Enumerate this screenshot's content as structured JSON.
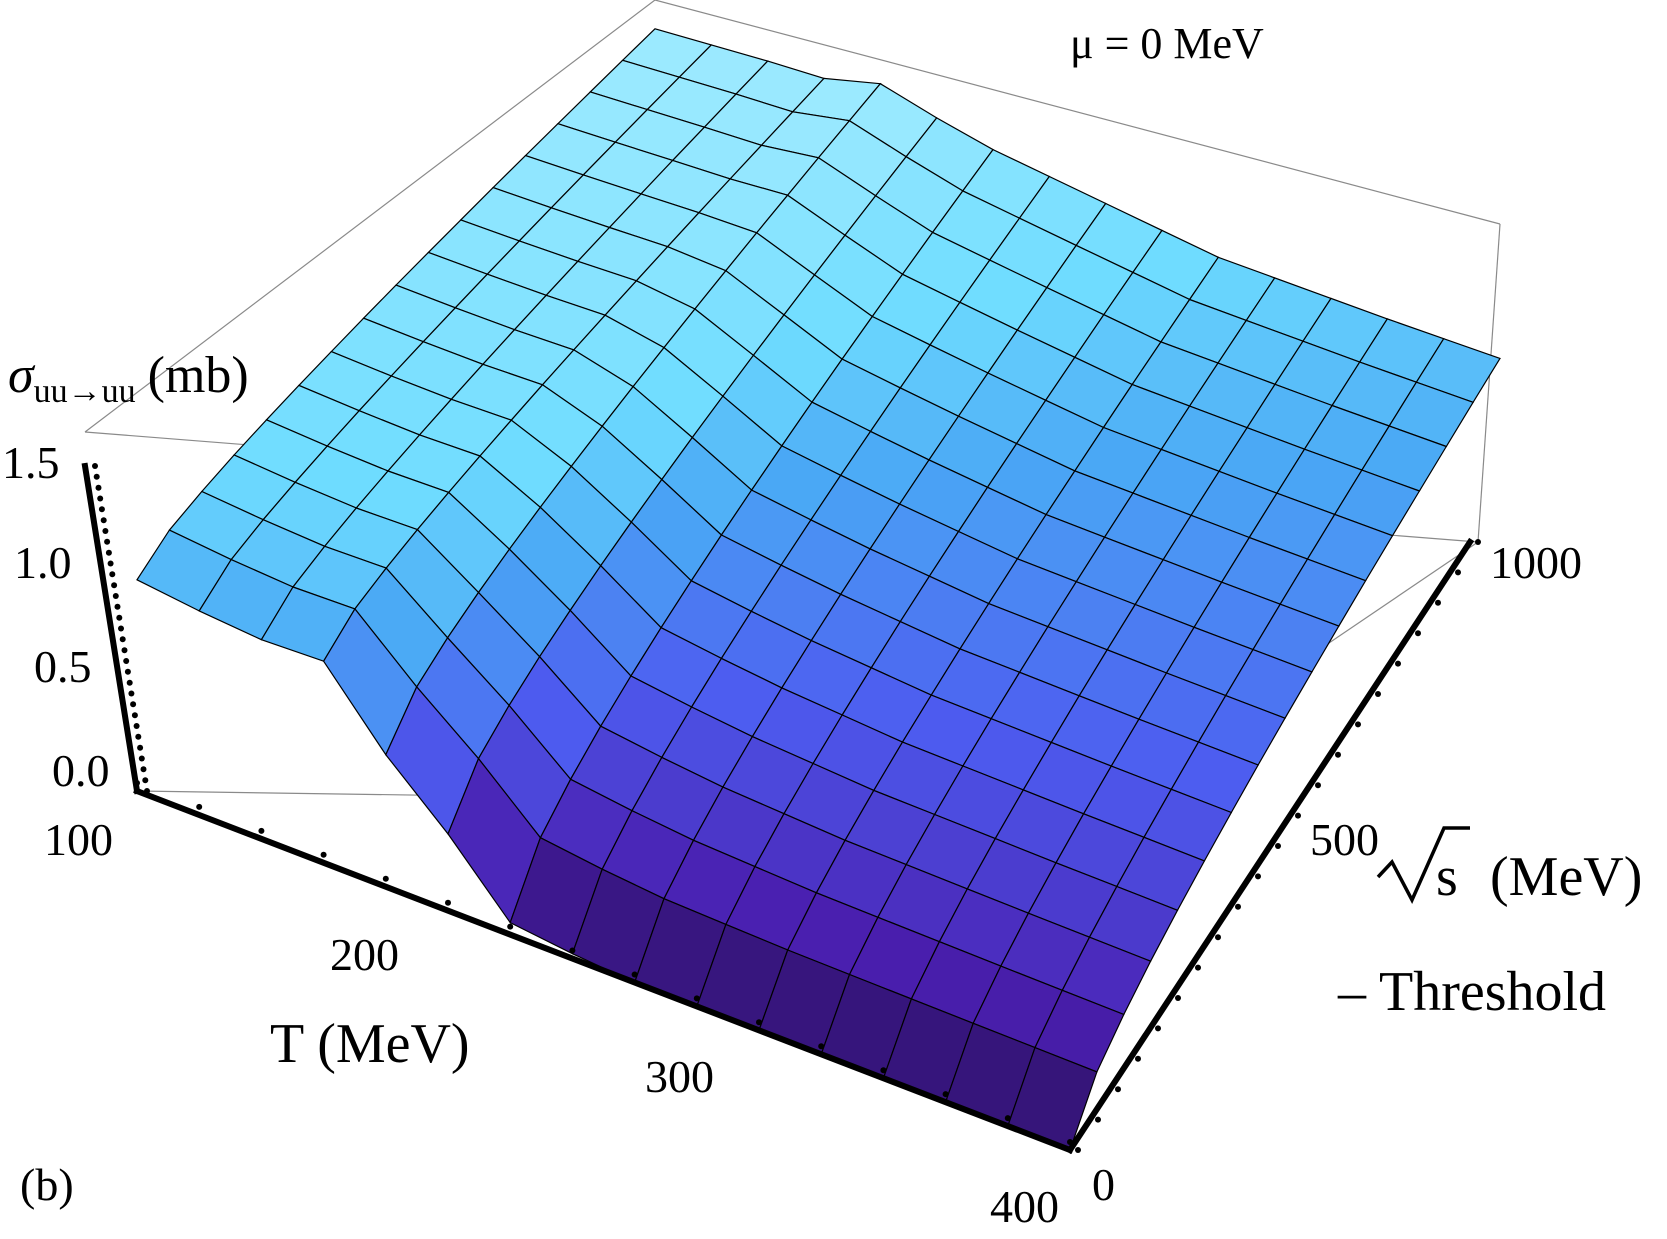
{
  "chart_data": {
    "type": "surface",
    "panel_label": "(b)",
    "annotation": "μ = 0 MeV",
    "z_axis": {
      "label_main": "σ",
      "label_sub": "uu→uu",
      "label_unit": "(mb)",
      "ticks": [
        "1.5",
        "1.0",
        "0.5",
        "0.0"
      ],
      "range": [
        0,
        1.5
      ]
    },
    "x_axis": {
      "label": "T (MeV)",
      "ticks": [
        "100",
        "200",
        "300",
        "400"
      ],
      "range": [
        100,
        400
      ]
    },
    "y_axis": {
      "label_sqrt": "√s",
      "label_unit": "(MeV)",
      "label_line2": "– Threshold",
      "ticks": [
        "0",
        "500",
        "1000"
      ],
      "range": [
        0,
        1000
      ]
    },
    "surface": {
      "T": [
        100,
        120,
        140,
        160,
        180,
        200,
        220,
        240,
        260,
        280,
        300,
        320,
        340,
        360,
        380,
        400
      ],
      "sqrt_s_minus_threshold": [
        0,
        62.5,
        125,
        187.5,
        250,
        312.5,
        375,
        437.5,
        500,
        562.5,
        625,
        687.5,
        750,
        812.5,
        875,
        937.5,
        1000
      ],
      "sigma_front_edge_T_vs_value": [
        [
          100,
          0.88
        ],
        [
          120,
          0.85
        ],
        [
          140,
          0.83
        ],
        [
          160,
          0.84
        ],
        [
          180,
          0.55
        ],
        [
          200,
          0.32
        ],
        [
          220,
          0.05
        ],
        [
          240,
          0.02
        ],
        [
          260,
          0.0
        ],
        [
          300,
          0.0
        ],
        [
          400,
          0.0
        ]
      ],
      "sigma_back_edge_T_vs_value": [
        [
          100,
          1.38
        ],
        [
          140,
          1.37
        ],
        [
          160,
          1.36
        ],
        [
          180,
          1.4
        ],
        [
          200,
          1.32
        ],
        [
          220,
          1.25
        ],
        [
          260,
          1.15
        ],
        [
          300,
          1.05
        ],
        [
          360,
          0.98
        ],
        [
          400,
          0.94
        ]
      ]
    }
  },
  "colors": {
    "surface_high": "#8fe6ff",
    "surface_mid": "#4d5cf0",
    "surface_low": "#2a0f5c",
    "mesh": "#000000",
    "box": "#8a8a8a"
  }
}
